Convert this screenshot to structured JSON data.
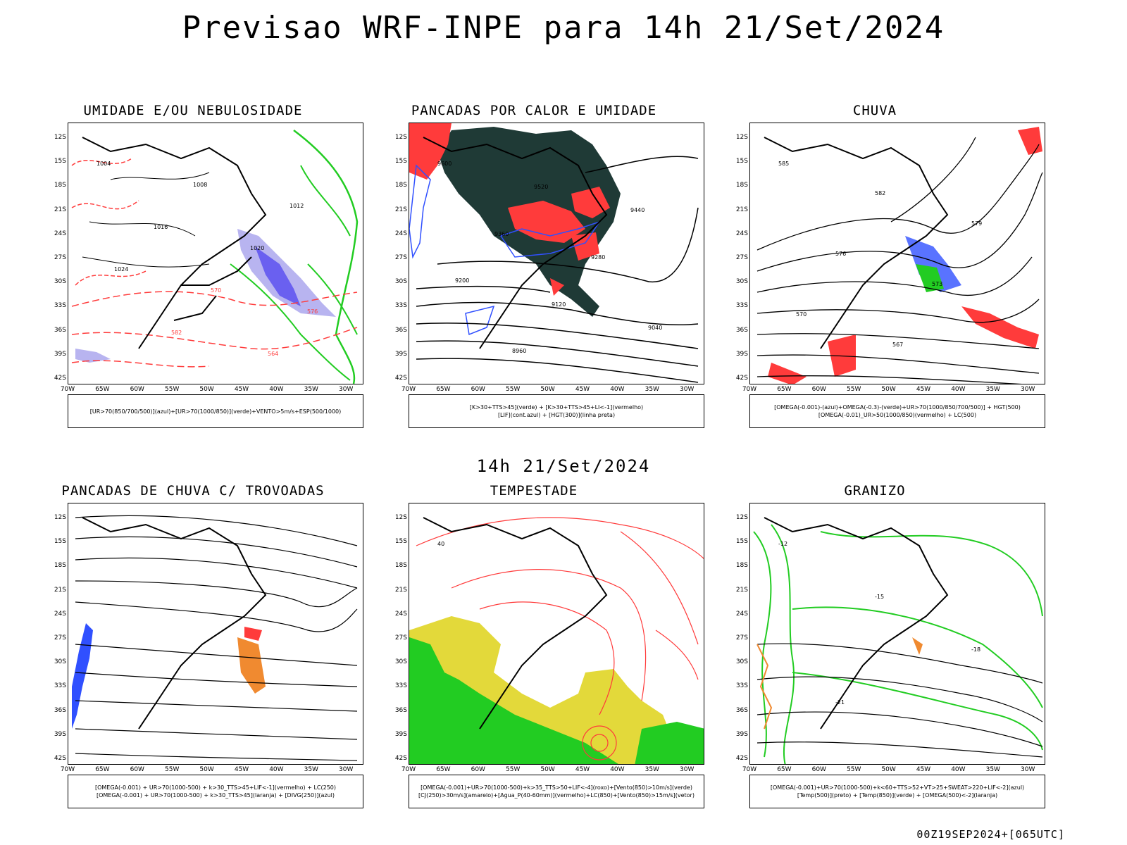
{
  "title": "Previsao WRF-INPE  para 14h 21/Set/2024",
  "mid_title": "14h 21/Set/2024",
  "footer": "00Z19SEP2024+[065UTC]",
  "axis": {
    "lat_labels": [
      "12S",
      "15S",
      "18S",
      "21S",
      "24S",
      "27S",
      "30S",
      "33S",
      "36S",
      "39S",
      "42S"
    ],
    "lon_labels": [
      "70W",
      "65W",
      "60W",
      "55W",
      "50W",
      "45W",
      "40W",
      "35W",
      "30W"
    ]
  },
  "panels": [
    {
      "title": "UMIDADE E/OU NEBULOSIDADE",
      "legend": [
        "[UR>70(850/700/500)](azul)+[UR>70(1000/850)](verde)+VENTO>5m/s+ESP(500/1000)"
      ],
      "contour_labels": [
        "1004",
        "1008",
        "1012",
        "1016",
        "1020",
        "1024",
        "570",
        "576",
        "582",
        "564"
      ]
    },
    {
      "title": "PANCADAS POR CALOR E UMIDADE",
      "legend": [
        "[K>30+TTS>45](verde) + [K>30+TTS>45+LI<-1](vermelho)",
        "[LIF](cont.azul) + [HGT(300)](linha preta)"
      ],
      "contour_labels": [
        "9600",
        "9520",
        "9440",
        "9360",
        "9280",
        "9200",
        "9120",
        "9040",
        "8960"
      ]
    },
    {
      "title": "CHUVA",
      "legend": [
        "[OMEGA(-0.001)-(azul)+OMEGA(-0.3)-(verde)+UR>70(1000/850/700/500)] + HGT(500)",
        "[OMEGA(-0.01)_UR>50(1000/850)(vermelho) + LC(500)"
      ],
      "contour_labels": [
        "585",
        "582",
        "579",
        "576",
        "573",
        "570",
        "567"
      ]
    },
    {
      "title": "PANCADAS DE CHUVA C/ TROVOADAS",
      "legend": [
        "[OMEGA(-0.001) + UR>70(1000-500) + k>30_TTS>45+LIF<-1](vermelho) + LC(250)",
        "[OMEGA(-0.001) + UR>70(1000-500) + k>30_TTS>45](laranja) + [DIVG(250)](azul)"
      ],
      "contour_labels": []
    },
    {
      "title": "TEMPESTADE",
      "legend": [
        "[OMEGA(-0.001)+UR>70(1000-500)+k>35_TTS>50+LIF<-4](roxo)+[Vento(850)>10m/s](verde)",
        "[CJ(250)>30m/s](amarelo)+[Agua_P(40-60mm)](vermelho)+LC(850)+[Vento(850)>15m/s](vetor)"
      ],
      "contour_labels": [
        "40"
      ]
    },
    {
      "title": "GRANIZO",
      "legend": [
        "[OMEGA(-0.001)+UR>70(1000-500)+k<60+TTS>52+VT>25+SWEAT>220+LIF<-2](azul)",
        "[Temp(500)](preto) + [Temp(850)](verde) + [OMEGA(500)<-2](laranja)"
      ],
      "contour_labels": [
        "-12",
        "-15",
        "-18",
        "-21"
      ]
    }
  ],
  "colors": {
    "red": "#ff3b3b",
    "blue": "#3050ff",
    "lavender": "#b8b4f0",
    "green": "#22cc22",
    "dark_teal": "#1f3a36",
    "yellow": "#e3d93a",
    "orange": "#f08a30"
  }
}
